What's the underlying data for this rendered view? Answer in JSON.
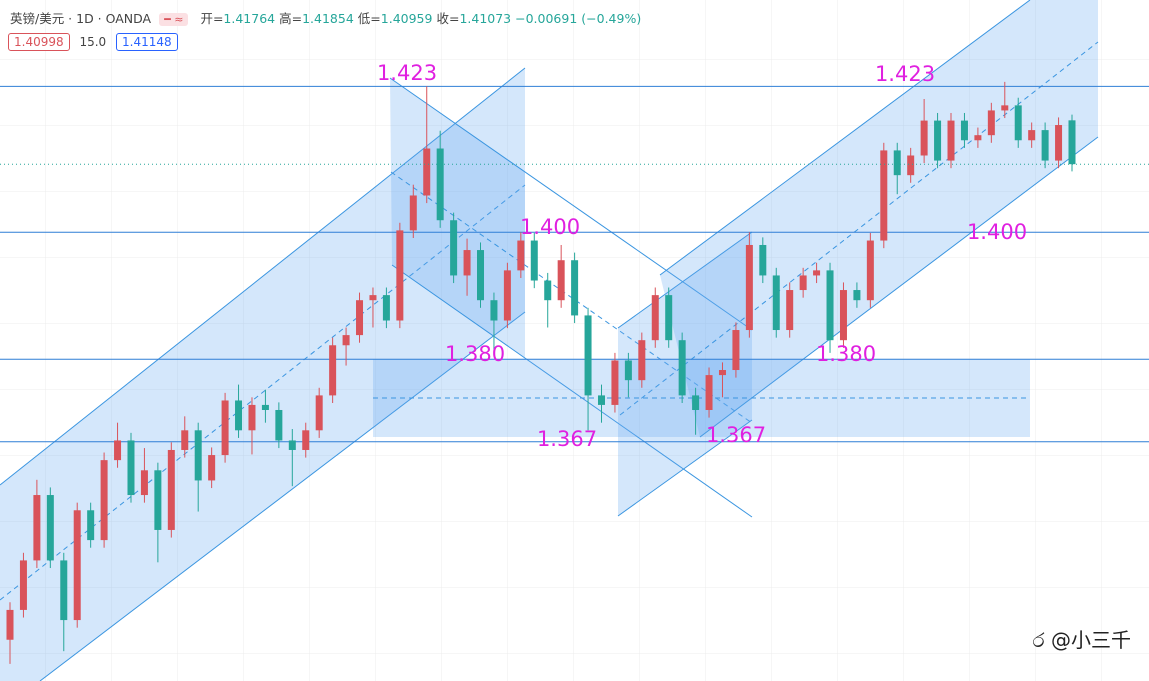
{
  "header": {
    "symbol": "英镑/美元 · 1D · OANDA",
    "open_label": "开=",
    "high_label": "高=",
    "low_label": "低=",
    "close_label": "收=",
    "change": "−0.00691 (−0.49%)",
    "sell": "1.40998",
    "spread": "15.0",
    "buy": "1.41148"
  },
  "watermark": "@小三千",
  "chart_data": {
    "type": "candlestick",
    "up_color": "#d9535a",
    "down_color": "#26a69a",
    "ylim": [
      1.3293,
      1.4366
    ],
    "open": [
      1.3358,
      1.3405,
      1.3483,
      1.3586,
      1.3483,
      1.3389,
      1.3562,
      1.3515,
      1.3641,
      1.3672,
      1.3586,
      1.3625,
      1.3531,
      1.3657,
      1.3688,
      1.3609,
      1.3649,
      1.3735,
      1.3688,
      1.3728,
      1.372,
      1.3672,
      1.3657,
      1.3688,
      1.3743,
      1.3822,
      1.3838,
      1.3893,
      1.3901,
      1.3861,
      1.4003,
      1.4058,
      1.4132,
      1.4019,
      1.3932,
      1.3972,
      1.3893,
      1.3861,
      1.394,
      1.3987,
      1.3924,
      1.3893,
      1.3956,
      1.3869,
      1.3743,
      1.3728,
      1.3798,
      1.3767,
      1.383,
      1.3901,
      1.383,
      1.3743,
      1.372,
      1.3775,
      1.3783,
      1.3846,
      1.398,
      1.3932,
      1.3846,
      1.3909,
      1.3932,
      1.394,
      1.383,
      1.3909,
      1.3893,
      1.3987,
      1.4129,
      1.409,
      1.4121,
      1.4176,
      1.4113,
      1.4176,
      1.4145,
      1.4153,
      1.4192,
      1.42,
      1.4145,
      1.4161,
      1.4113,
      1.41764
    ],
    "high": [
      1.3417,
      1.3495,
      1.361,
      1.3598,
      1.3495,
      1.3574,
      1.3574,
      1.3653,
      1.37,
      1.3684,
      1.366,
      1.3637,
      1.3669,
      1.371,
      1.37,
      1.3661,
      1.3747,
      1.376,
      1.374,
      1.3752,
      1.3732,
      1.369,
      1.37,
      1.3755,
      1.3834,
      1.385,
      1.3905,
      1.3913,
      1.3913,
      1.4015,
      1.4075,
      1.423,
      1.416,
      1.4031,
      1.399,
      1.3984,
      1.3905,
      1.3952,
      1.4,
      1.3999,
      1.3936,
      1.398,
      1.3968,
      1.3881,
      1.376,
      1.381,
      1.381,
      1.3842,
      1.3913,
      1.3913,
      1.3842,
      1.3755,
      1.3787,
      1.3795,
      1.3858,
      1.4,
      1.3992,
      1.3944,
      1.3921,
      1.3944,
      1.3952,
      1.3952,
      1.3921,
      1.3921,
      1.3999,
      1.4141,
      1.4141,
      1.4133,
      1.421,
      1.4188,
      1.4188,
      1.4188,
      1.4165,
      1.4204,
      1.4237,
      1.4212,
      1.4173,
      1.4173,
      1.4181,
      1.41854
    ],
    "low": [
      1.332,
      1.3393,
      1.3471,
      1.3471,
      1.334,
      1.3377,
      1.3503,
      1.3503,
      1.3629,
      1.3574,
      1.3574,
      1.348,
      1.3519,
      1.3645,
      1.356,
      1.3597,
      1.3637,
      1.3676,
      1.365,
      1.37,
      1.366,
      1.36,
      1.3645,
      1.3676,
      1.3731,
      1.379,
      1.3826,
      1.385,
      1.3849,
      1.3849,
      1.3991,
      1.4046,
      1.4007,
      1.392,
      1.39,
      1.3881,
      1.381,
      1.3849,
      1.3928,
      1.3912,
      1.385,
      1.3881,
      1.3857,
      1.3688,
      1.37,
      1.3716,
      1.374,
      1.3755,
      1.3818,
      1.3818,
      1.3731,
      1.3681,
      1.3708,
      1.374,
      1.3771,
      1.3834,
      1.392,
      1.3834,
      1.3834,
      1.3897,
      1.392,
      1.381,
      1.3818,
      1.3881,
      1.3881,
      1.3975,
      1.406,
      1.4078,
      1.4109,
      1.4101,
      1.4101,
      1.4133,
      1.4133,
      1.4141,
      1.418,
      1.4133,
      1.4133,
      1.4101,
      1.4101,
      1.40959
    ],
    "close": [
      1.3405,
      1.3483,
      1.3586,
      1.3483,
      1.3389,
      1.3562,
      1.3515,
      1.3641,
      1.3672,
      1.3586,
      1.3625,
      1.3531,
      1.3657,
      1.3688,
      1.3609,
      1.3649,
      1.3735,
      1.3688,
      1.3728,
      1.372,
      1.3672,
      1.3657,
      1.3688,
      1.3743,
      1.3822,
      1.3838,
      1.3893,
      1.3901,
      1.3861,
      1.4003,
      1.4058,
      1.4132,
      1.4019,
      1.3932,
      1.3972,
      1.3893,
      1.3861,
      1.394,
      1.3987,
      1.3924,
      1.3893,
      1.3956,
      1.3869,
      1.3743,
      1.3728,
      1.3798,
      1.3767,
      1.383,
      1.3901,
      1.383,
      1.3743,
      1.372,
      1.3775,
      1.3783,
      1.3846,
      1.398,
      1.3932,
      1.3846,
      1.3909,
      1.3932,
      1.394,
      1.383,
      1.3909,
      1.3893,
      1.3987,
      1.4129,
      1.409,
      1.4121,
      1.4176,
      1.4113,
      1.4176,
      1.4145,
      1.4153,
      1.4192,
      1.42,
      1.4145,
      1.4161,
      1.4113,
      1.4169,
      1.41073
    ],
    "levels": [
      1.423,
      1.4,
      1.38,
      1.367
    ],
    "level_color": "#2f7fd6",
    "annotations": [
      "1.423",
      "1.400",
      "1.380",
      "1.367",
      "1.367",
      "1.423",
      "1.380",
      "1.400"
    ],
    "annotation_color": "#e020e0"
  }
}
